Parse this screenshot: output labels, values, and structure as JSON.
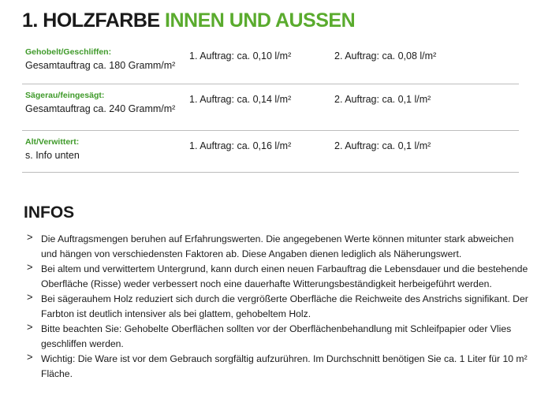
{
  "title": {
    "number": "1. HOLZFARBE",
    "highlight": "INNEN UND AUSSEN"
  },
  "table": {
    "rows": [
      {
        "label": "Gehobelt/Geschliffen:",
        "total": "Gesamtauftrag ca. 180 Gramm/m²",
        "first": "1. Auftrag: ca. 0,10 l/m²",
        "second": "2. Auftrag: ca. 0,08 l/m²"
      },
      {
        "label": "Sägerau/feingesägt:",
        "total": "Gesamtauftrag ca. 240 Gramm/m²",
        "first": "1. Auftrag: ca. 0,14 l/m²",
        "second": "2. Auftrag: ca. 0,1 l/m²"
      },
      {
        "label": "Alt/Verwittert:",
        "total": "s. Info unten",
        "first": "1. Auftrag: ca. 0,16 l/m²",
        "second": "2. Auftrag: ca. 0,1 l/m²"
      }
    ]
  },
  "infos": {
    "heading": "INFOS",
    "items": [
      "Die Auftragsmengen beruhen auf Erfahrungswerten. Die angegebenen Werte können mitunter stark abweichen und hängen von verschiedensten Faktoren ab. Diese Angaben dienen lediglich als Näherungswert.",
      "Bei altem und verwittertem Untergrund, kann durch einen neuen Farbauftrag die Lebensdauer und die bestehende Oberfläche (Risse) weder verbessert noch eine dauerhafte Witterungsbeständigkeit herbeigeführt werden.",
      "Bei sägerauhem Holz reduziert sich durch die vergrößerte Oberfläche die Reichweite des Anstrichs signifikant. Der Farbton ist deutlich intensiver als bei glattem, gehobeltem Holz.",
      "Bitte beachten Sie: Gehobelte Oberflächen sollten vor der Oberflächenbehandlung mit Schleifpapier oder Vlies geschliffen werden.",
      "Wichtig: Die Ware ist vor dem Gebrauch sorgfältig aufzurühren. Im Durchschnitt benötigen Sie ca. 1 Liter für 10 m² Fläche."
    ]
  }
}
